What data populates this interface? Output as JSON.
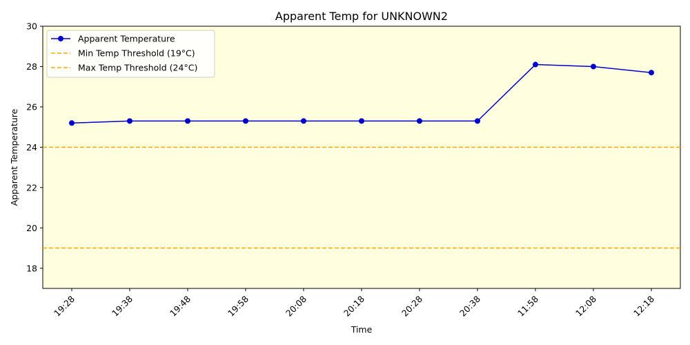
{
  "chart_data": {
    "type": "line",
    "title": "Apparent Temp for UNKNOWN2",
    "xlabel": "Time",
    "ylabel": "Apparent Temperature",
    "categories": [
      "19:28",
      "19:38",
      "19:48",
      "19:58",
      "20:08",
      "20:18",
      "20:28",
      "20:38",
      "11:58",
      "12:08",
      "12:18"
    ],
    "series": [
      {
        "name": "Apparent Temperature",
        "color": "#0000cc",
        "values": [
          25.2,
          25.3,
          25.3,
          25.3,
          25.3,
          25.3,
          25.3,
          25.3,
          28.1,
          28.0,
          27.7
        ]
      }
    ],
    "thresholds": [
      {
        "name": "Min Temp Threshold (19°C)",
        "value": 19,
        "color": "#ffa500"
      },
      {
        "name": "Max Temp Threshold (24°C)",
        "value": 24,
        "color": "#ffa500"
      }
    ],
    "ylim": [
      17,
      30
    ],
    "yticks": [
      18,
      20,
      22,
      24,
      26,
      28,
      30
    ],
    "grid": false,
    "legend_position": "top-left",
    "plot_background": "#ffffe0"
  }
}
